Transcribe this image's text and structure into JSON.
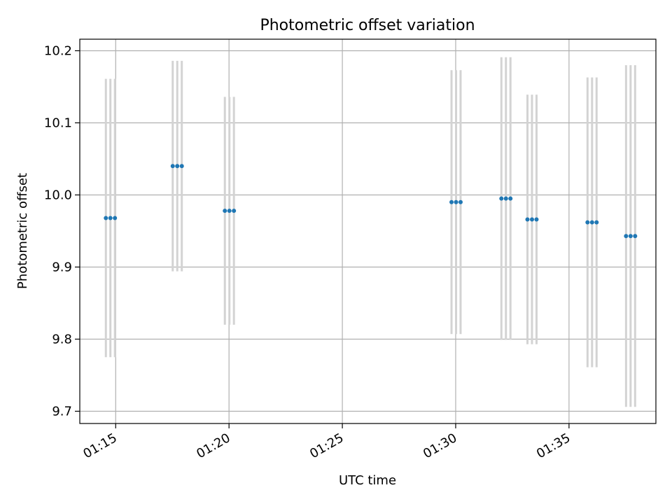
{
  "chart_data": {
    "type": "scatter",
    "title": "Photometric offset variation",
    "xlabel": "UTC time",
    "ylabel": "Photometric offset",
    "x_axis": {
      "kind": "time",
      "range": [
        "01:13:25",
        "01:38:50"
      ],
      "ticks": [
        "01:15",
        "01:20",
        "01:25",
        "01:30",
        "01:35"
      ]
    },
    "y_axis": {
      "range": [
        9.683,
        10.216
      ],
      "ticks": [
        9.7,
        9.8,
        9.9,
        10.0,
        10.1,
        10.2
      ],
      "tick_labels": [
        "9.7",
        "9.8",
        "9.9",
        "10.0",
        "10.1",
        "10.2"
      ]
    },
    "grid": true,
    "series": [
      {
        "marker_color": "#1f77b4",
        "errorbar_color": "#d3d3d3",
        "points": [
          {
            "t": "01:14:34",
            "y": 9.968,
            "err": 0.193
          },
          {
            "t": "01:14:46",
            "y": 9.968,
            "err": 0.193
          },
          {
            "t": "01:14:58",
            "y": 9.968,
            "err": 0.193
          },
          {
            "t": "01:17:31",
            "y": 10.04,
            "err": 0.146
          },
          {
            "t": "01:17:43",
            "y": 10.04,
            "err": 0.146
          },
          {
            "t": "01:17:55",
            "y": 10.04,
            "err": 0.146
          },
          {
            "t": "01:19:49",
            "y": 9.978,
            "err": 0.158
          },
          {
            "t": "01:20:01",
            "y": 9.978,
            "err": 0.158
          },
          {
            "t": "01:20:13",
            "y": 9.978,
            "err": 0.158
          },
          {
            "t": "01:29:49",
            "y": 9.99,
            "err": 0.183
          },
          {
            "t": "01:30:01",
            "y": 9.99,
            "err": 0.183
          },
          {
            "t": "01:30:13",
            "y": 9.99,
            "err": 0.183
          },
          {
            "t": "01:32:01",
            "y": 9.995,
            "err": 0.196
          },
          {
            "t": "01:32:13",
            "y": 9.995,
            "err": 0.196
          },
          {
            "t": "01:32:25",
            "y": 9.995,
            "err": 0.196
          },
          {
            "t": "01:33:10",
            "y": 9.966,
            "err": 0.173
          },
          {
            "t": "01:33:22",
            "y": 9.966,
            "err": 0.173
          },
          {
            "t": "01:33:34",
            "y": 9.966,
            "err": 0.173
          },
          {
            "t": "01:35:49",
            "y": 9.962,
            "err": 0.201
          },
          {
            "t": "01:36:01",
            "y": 9.962,
            "err": 0.201
          },
          {
            "t": "01:36:13",
            "y": 9.962,
            "err": 0.201
          },
          {
            "t": "01:37:31",
            "y": 9.943,
            "err": 0.237
          },
          {
            "t": "01:37:43",
            "y": 9.943,
            "err": 0.237
          },
          {
            "t": "01:37:55",
            "y": 9.943,
            "err": 0.237
          }
        ]
      }
    ]
  }
}
